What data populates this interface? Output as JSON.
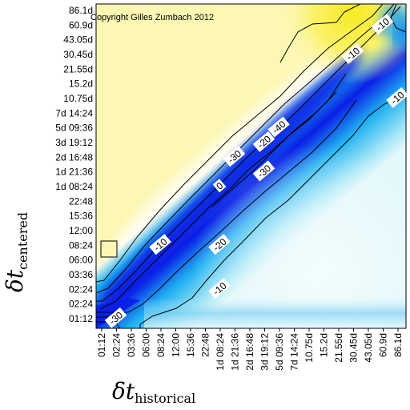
{
  "chart_data": {
    "type": "heatmap",
    "annotation": "Copyright Gilles Zumbach 2012",
    "xlabel": {
      "symbol": "δt",
      "subscript": "historical"
    },
    "ylabel": {
      "symbol": "δt",
      "subscript": "centered"
    },
    "x_ticks": [
      "01:12",
      "02:24",
      "03:36",
      "06:00",
      "08:24",
      "12:00",
      "15:36",
      "22:48",
      "1d 08:24",
      "1d 21:36",
      "2d 16:48",
      "3d 19:12",
      "5d 09:36",
      "7d 14:24",
      "10.75d",
      "15.2d",
      "21.55d",
      "30.45d",
      "43.05d",
      "60.9d",
      "86.1d"
    ],
    "y_ticks": [
      "01:12",
      "02:24",
      "02:24",
      "03:36",
      "06:00",
      "08:24",
      "12:00",
      "15:36",
      "22:48",
      "1d 08:24",
      "1d 21:36",
      "2d 16:48",
      "3d 19:12",
      "5d 09:36",
      "7d 14:24",
      "10.75d",
      "15.2d",
      "21.55d",
      "30.45d",
      "43.05d",
      "60.9d",
      "86.1d"
    ],
    "contour_labels": [
      {
        "text": "0",
        "x": "1d 08:24",
        "y": "1d 08:24"
      },
      {
        "text": "-10",
        "x": "60.9d",
        "y": "60.9d"
      },
      {
        "text": "-10",
        "x": "30.45d",
        "y": "30.45d"
      },
      {
        "text": "-10",
        "x": "08:24",
        "y": "08:24"
      },
      {
        "text": "-10",
        "x": "86.1d",
        "y": "10.75d"
      },
      {
        "text": "-10",
        "x": "1d 08:24",
        "y": "02:24"
      },
      {
        "text": "-20",
        "x": "3d 19:12",
        "y": "3d 19:12"
      },
      {
        "text": "-20",
        "x": "1d 08:24",
        "y": "08:24"
      },
      {
        "text": "-30",
        "x": "1d 21:36",
        "y": "2d 16:48"
      },
      {
        "text": "-30",
        "x": "3d 19:12",
        "y": "1d 21:36"
      },
      {
        "text": "-30",
        "x": "02:24",
        "y": "01:12"
      },
      {
        "text": "-40",
        "x": "5d 09:36",
        "y": "5d 09:36"
      }
    ],
    "colors": {
      "positive": "#fffbb0",
      "high": "#f7ee30",
      "zero": "#ffffff",
      "negative_light": "#bdeff6",
      "negative_mid": "#1fb0f0",
      "negative_strong": "#0a1ee6"
    },
    "grid": false,
    "legend": "none"
  }
}
